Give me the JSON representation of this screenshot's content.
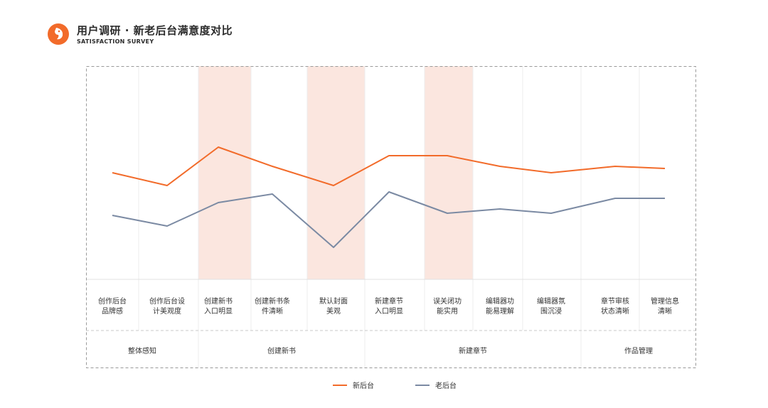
{
  "header": {
    "title": "用户调研 · 新老后台满意度对比",
    "subtitle": "SATISFACTION SURVEY",
    "logo_icon": "bird-logo-icon",
    "accent_color": "#f26b2a"
  },
  "chart_data": {
    "type": "line",
    "categories": [
      "创作后台品牌感",
      "创作后台设计美观度",
      "创建新书入口明显",
      "创建新书条件清晰",
      "默认封面美观",
      "新建章节入口明显",
      "误关闭功能实用",
      "编辑器功能易理解",
      "编辑器氛围沉浸",
      "章节审核状态清晰",
      "管理信息清晰"
    ],
    "category_lines": [
      [
        "创作后台",
        "品牌感"
      ],
      [
        "创作后台设",
        "计美观度"
      ],
      [
        "创建新书",
        "入口明显"
      ],
      [
        "创建新书条",
        "件清晰"
      ],
      [
        "默认封面",
        "美观"
      ],
      [
        "新建章节",
        "入口明显"
      ],
      [
        "误关闭功",
        "能实用"
      ],
      [
        "编辑器功",
        "能易理解"
      ],
      [
        "编辑器氛",
        "围沉浸"
      ],
      [
        "章节审核",
        "状态清晰"
      ],
      [
        "管理信息",
        "清晰"
      ]
    ],
    "groups": [
      {
        "label": "整体感知",
        "categories": [
          0,
          1
        ]
      },
      {
        "label": "创建新书",
        "categories": [
          2,
          3,
          4
        ]
      },
      {
        "label": "新建章节",
        "categories": [
          5,
          6,
          7,
          8
        ]
      },
      {
        "label": "作品管理",
        "categories": [
          9,
          10
        ]
      }
    ],
    "highlighted_categories": [
      2,
      4,
      6
    ],
    "highlight_color": "#fbe6df",
    "ylim": [
      0,
      100
    ],
    "series": [
      {
        "name": "新后台",
        "color": "#f26b2a",
        "values": [
          50,
          44,
          62,
          53,
          44,
          58,
          58,
          53,
          50,
          53,
          52
        ]
      },
      {
        "name": "老后台",
        "color": "#7b8aa3",
        "values": [
          30,
          25,
          36,
          40,
          15,
          41,
          31,
          33,
          31,
          38,
          38
        ]
      }
    ],
    "grid": true,
    "legend": "bottom-center"
  }
}
